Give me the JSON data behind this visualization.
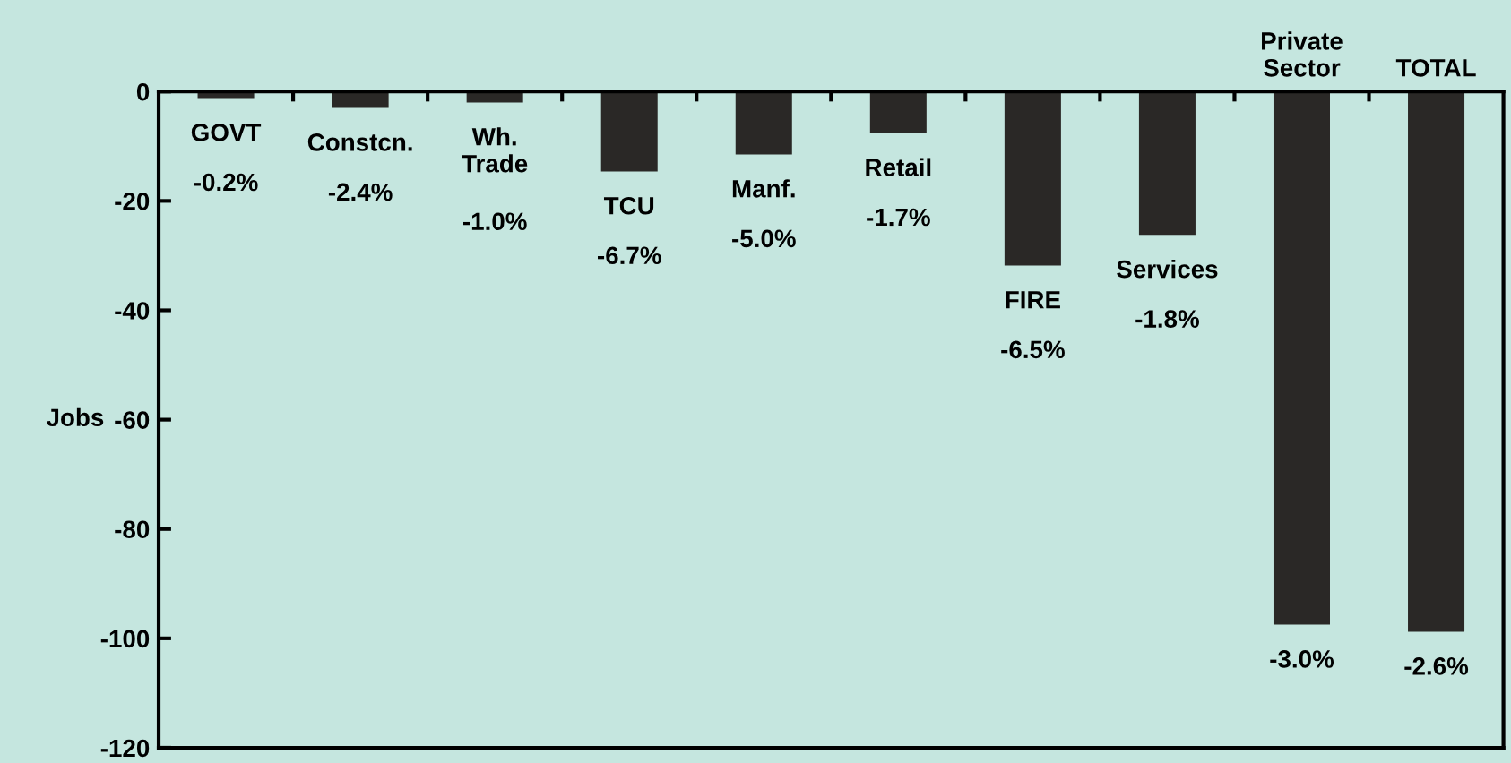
{
  "chart_data": {
    "type": "bar",
    "ylabel": "Jobs",
    "categories": [
      "GOVT",
      "Constcn.",
      "Wh.\nTrade",
      "TCU",
      "Manf.",
      "Retail",
      "FIRE",
      "Services",
      "Private\nSector",
      "TOTAL"
    ],
    "values": [
      -1.2,
      -3,
      -2,
      -14.6,
      -11.5,
      -7.6,
      -31.8,
      -26.2,
      -97.5,
      -98.8
    ],
    "color": "#2a2826",
    "ylim": [
      -120,
      0
    ],
    "yticks": [
      -120,
      -100,
      -80,
      -60,
      -40,
      -20,
      0
    ],
    "tick_labels": "y",
    "grid": false,
    "annotations": [
      "-0.2%",
      "-2.4%",
      "-1.0%",
      "-6.7%",
      "-5.0%",
      "-1.7%",
      "-6.5%",
      "-1.8%",
      "-3.0%",
      "-2.6%"
    ]
  }
}
